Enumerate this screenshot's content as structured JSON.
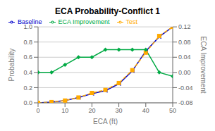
{
  "chart_data": {
    "type": "line",
    "title": "ECA Probability-Conflict 1",
    "xlabel": "ECA (ft)",
    "ylabel": "Probability",
    "y2label": "ECA Improvement",
    "x": [
      0,
      5,
      10,
      15,
      20,
      25,
      30,
      35,
      40,
      45,
      50
    ],
    "series": [
      {
        "name": "Baseline",
        "color": "#0000cc",
        "marker": "triangle-left",
        "line_style": "solid",
        "values": [
          0.0,
          0.01,
          0.03,
          0.07,
          0.12,
          0.16,
          0.25,
          0.42,
          0.68,
          0.87,
          1.0
        ]
      },
      {
        "name": "Test",
        "color": "#ffaa00",
        "marker": "square",
        "line_style": "dashed",
        "values": [
          0.0,
          0.01,
          0.03,
          0.07,
          0.13,
          0.17,
          0.26,
          0.43,
          0.66,
          0.88,
          1.0
        ]
      },
      {
        "name": "ECA Improvement",
        "color": "#00aa44",
        "marker": "diamond",
        "line_style": "solid",
        "axis": "y2",
        "values": [
          0.0,
          0.0,
          0.02,
          0.04,
          0.04,
          0.06,
          0.06,
          0.06,
          0.06,
          0.0,
          -0.01
        ]
      }
    ],
    "xlim": [
      0,
      50
    ],
    "xticks": [
      0,
      10,
      20,
      30,
      40,
      50
    ],
    "ylim": [
      0,
      1
    ],
    "yticks": [
      {
        "value": 0,
        "label": "0.0"
      },
      0.2,
      0.4,
      0.6,
      0.8,
      {
        "value": 1,
        "label": "1.0"
      }
    ],
    "y2lim": [
      -0.08,
      0.12
    ],
    "y2ticks": [
      -0.08,
      -0.04,
      {
        "value": 0,
        "label": "0.00"
      },
      0.04,
      0.08,
      0.12
    ],
    "grid": true,
    "legend": "upper left"
  }
}
